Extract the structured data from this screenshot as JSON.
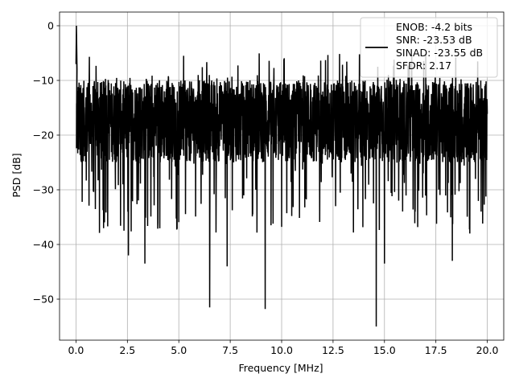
{
  "chart_data": {
    "type": "line",
    "xlabel": "Frequency [MHz]",
    "ylabel": "PSD [dB]",
    "xlim": [
      -0.8,
      20.8
    ],
    "ylim": [
      -57.5,
      2.5
    ],
    "xticks": [
      0.0,
      2.5,
      5.0,
      7.5,
      10.0,
      12.5,
      15.0,
      17.5,
      20.0
    ],
    "xtick_labels": [
      "0.0",
      "2.5",
      "5.0",
      "7.5",
      "10.0",
      "12.5",
      "15.0",
      "17.5",
      "20.0"
    ],
    "yticks": [
      0,
      -10,
      -20,
      -30,
      -40,
      -50
    ],
    "ytick_labels": [
      "0",
      "−10",
      "−20",
      "−30",
      "−40",
      "−50"
    ],
    "grid": true,
    "legend_position": "top-right",
    "legend_lines": [
      "ENOB: -4.2 bits",
      "SNR: -23.53 dB",
      "SINAD: -23.55 dB",
      "SFDR: 2.17"
    ],
    "line_color": "#000000",
    "series": [
      {
        "x_range": [
          0.0,
          20.0
        ],
        "peak": {
          "x": 0.02,
          "y": 0
        },
        "band_typical": [
          -25,
          -10
        ],
        "deep_notches": [
          {
            "x": 2.55,
            "y": -42
          },
          {
            "x": 3.35,
            "y": -43.5
          },
          {
            "x": 6.5,
            "y": -51.5
          },
          {
            "x": 7.35,
            "y": -44
          },
          {
            "x": 9.2,
            "y": -51.8
          },
          {
            "x": 14.6,
            "y": -55
          },
          {
            "x": 15.0,
            "y": -43.5
          },
          {
            "x": 18.3,
            "y": -43
          }
        ]
      }
    ]
  }
}
